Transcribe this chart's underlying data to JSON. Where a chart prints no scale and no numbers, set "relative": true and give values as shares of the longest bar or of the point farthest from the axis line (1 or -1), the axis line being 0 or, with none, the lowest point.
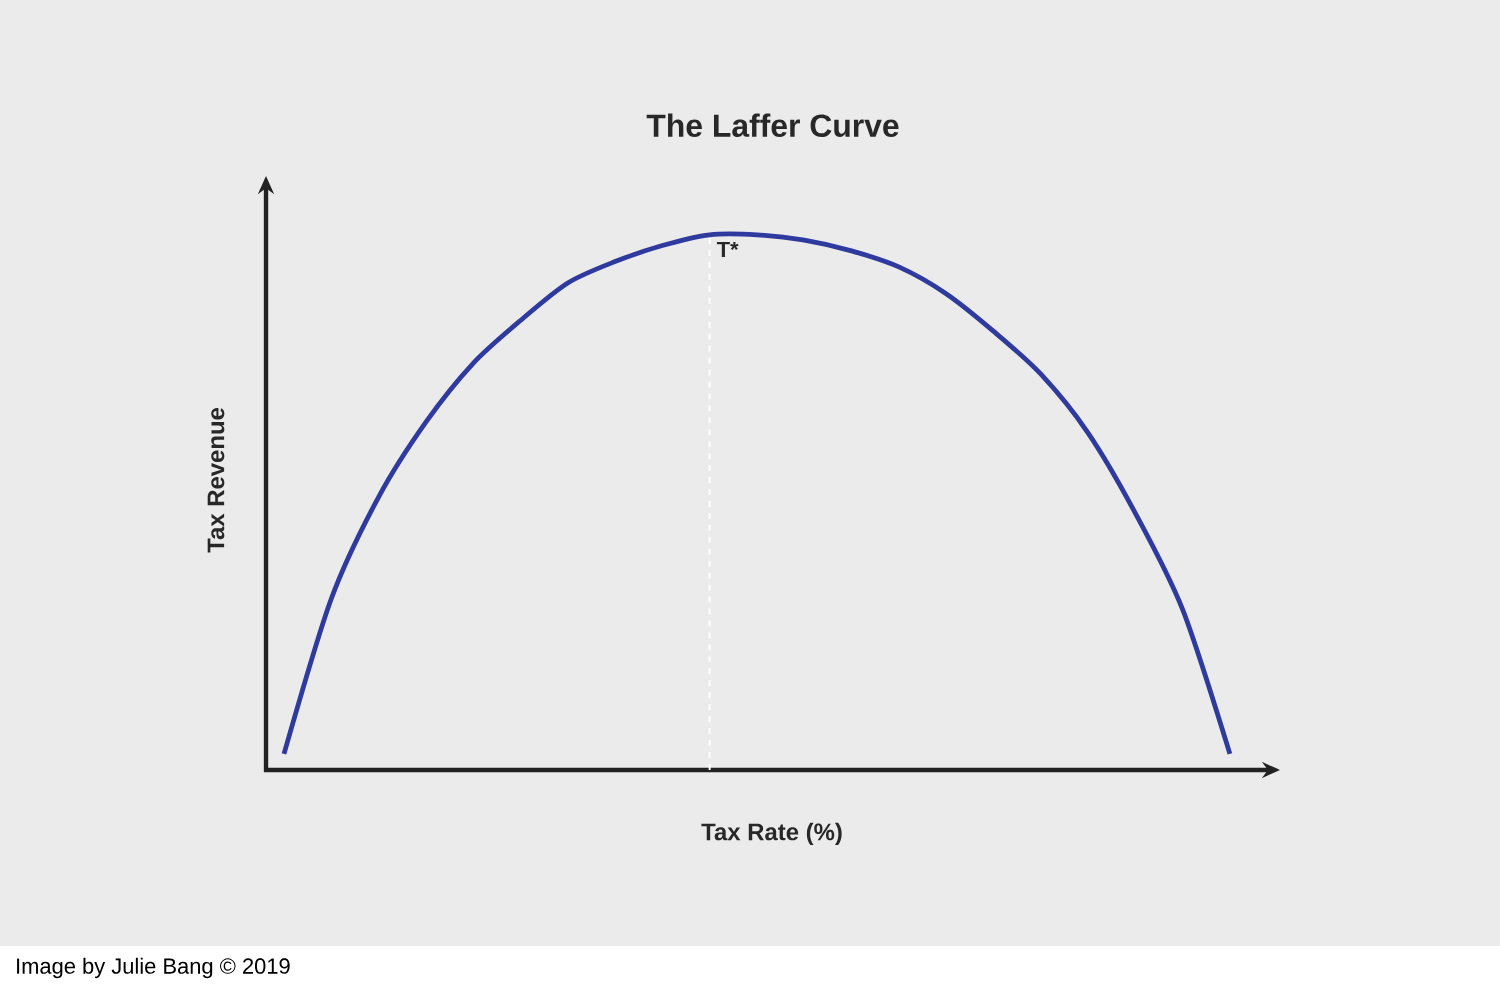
{
  "chart_data": {
    "type": "line",
    "title": "The Laffer Curve",
    "xlabel": "Tax Rate (%)",
    "ylabel": "Tax Revenue",
    "relative": true,
    "marker": "none",
    "line_style": "solid",
    "categories": [
      null,
      null,
      null,
      null,
      null,
      null,
      null,
      null,
      null,
      null,
      null,
      null,
      null,
      null,
      null,
      null,
      null,
      null,
      null,
      null,
      null
    ],
    "series": [
      {
        "color": "#2e3a9e",
        "values": [
          0.03,
          0.32,
          0.51,
          0.65,
          0.76,
          0.84,
          0.91,
          0.95,
          0.98,
          1.0,
          1.0,
          0.99,
          0.97,
          0.94,
          0.89,
          0.82,
          0.74,
          0.63,
          0.48,
          0.3,
          0.03
        ]
      }
    ],
    "annotations": [
      "Image by Julie Bang © 2019",
      "T*"
    ]
  }
}
